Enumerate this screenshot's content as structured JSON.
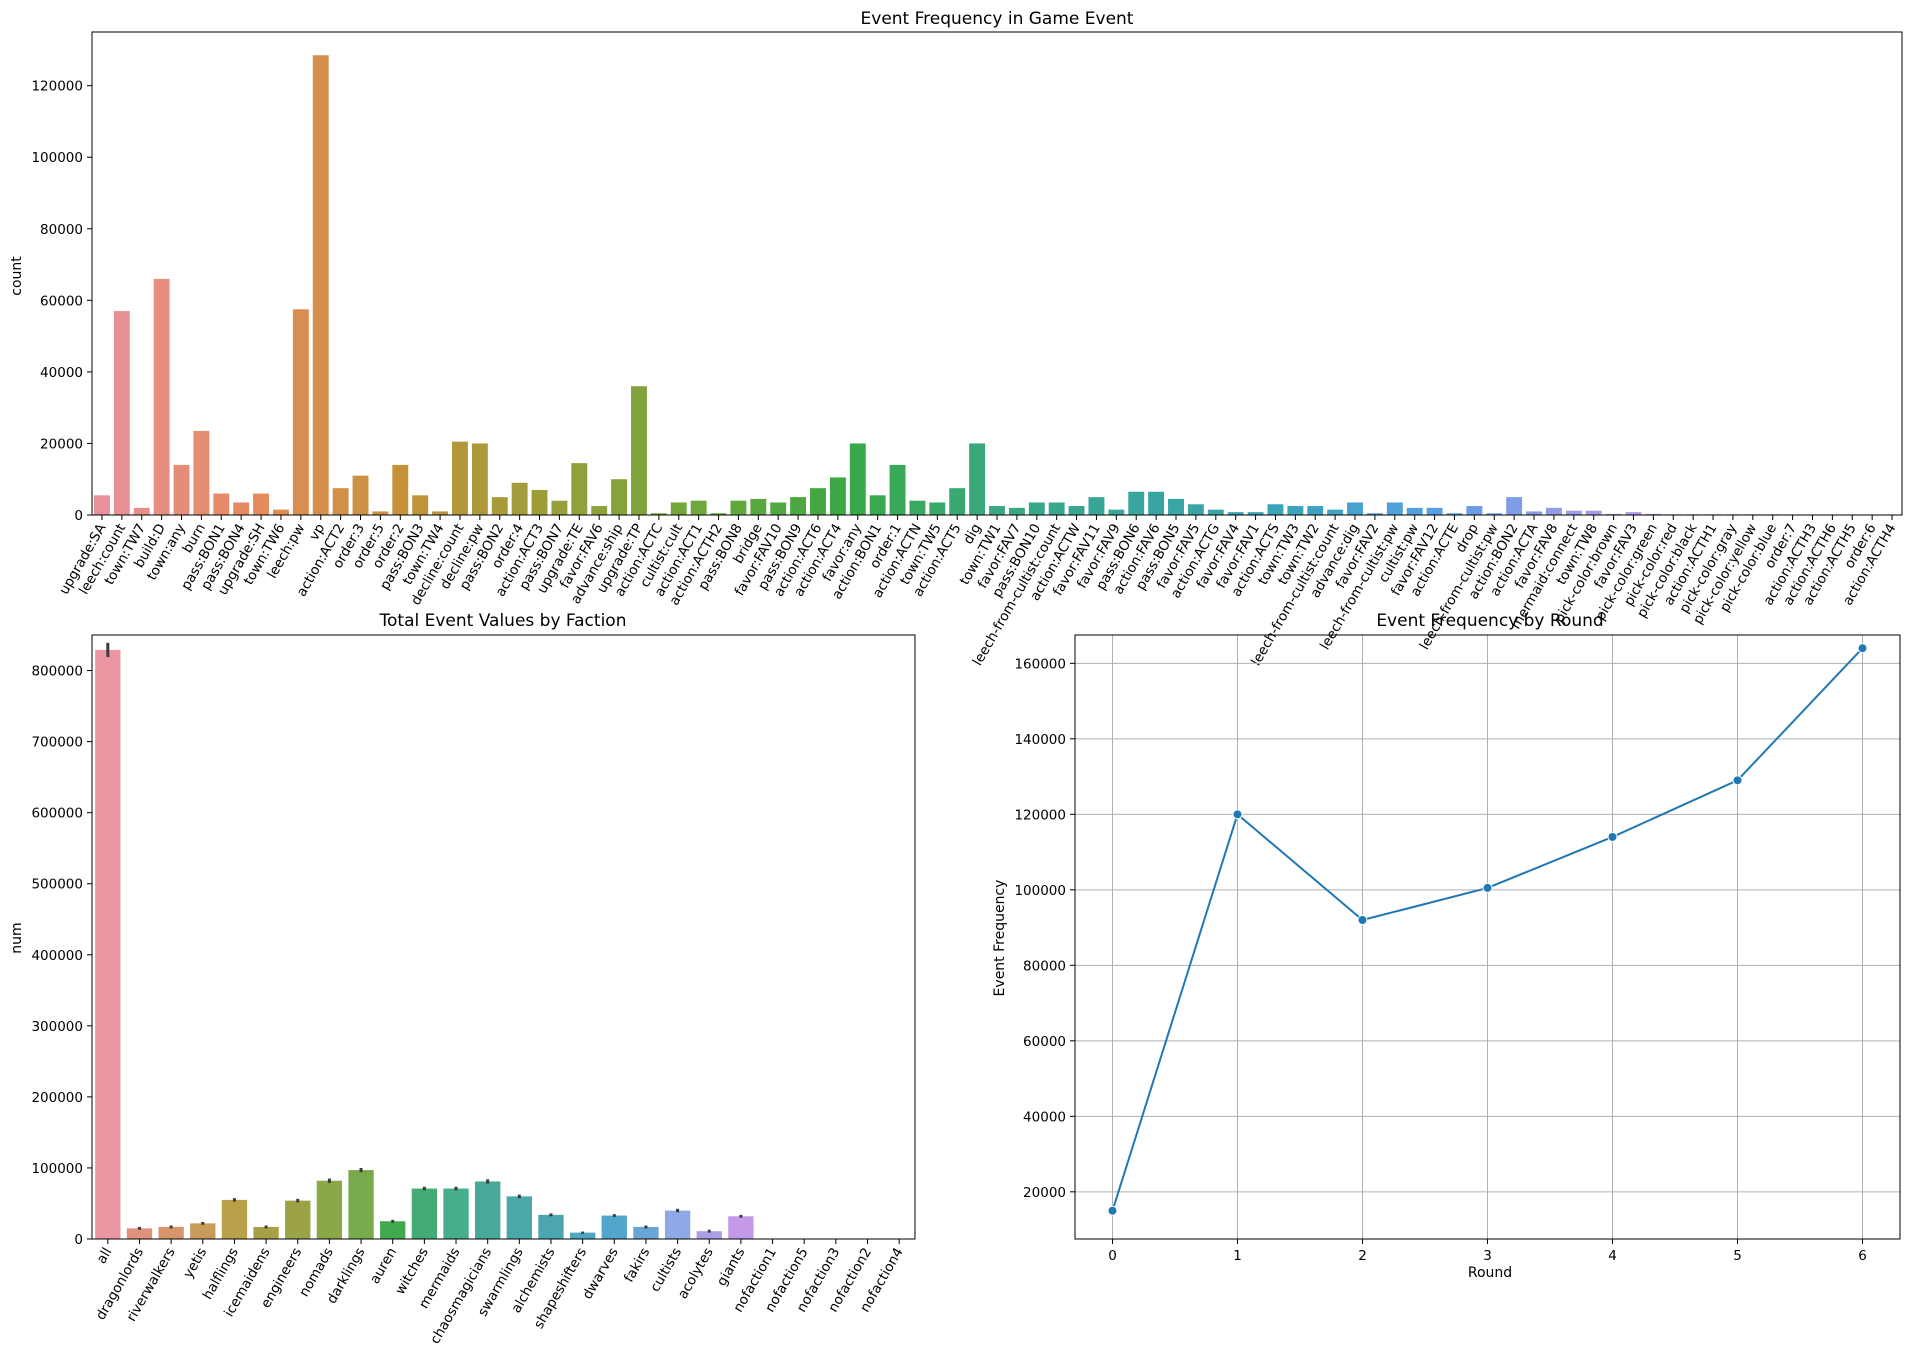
{
  "chart_data": [
    {
      "type": "bar",
      "title": "Event Frequency in Game Event",
      "xlabel": "",
      "ylabel": "count",
      "ylim": [
        0,
        135000
      ],
      "yticks": [
        0,
        20000,
        40000,
        60000,
        80000,
        100000,
        120000
      ],
      "categories": [
        "upgrade:SA",
        "leech:count",
        "town:TW7",
        "build:D",
        "town:any",
        "burn",
        "pass:BON1",
        "pass:BON4",
        "upgrade:SH",
        "town:TW6",
        "leech:pw",
        "vp",
        "action:ACT2",
        "order:3",
        "order:5",
        "order:2",
        "pass:BON3",
        "town:TW4",
        "decline:count",
        "decline:pw",
        "pass:BON2",
        "order:4",
        "action:ACT3",
        "pass:BON7",
        "upgrade:TE",
        "favor:FAV6",
        "advance:ship",
        "upgrade:TP",
        "action:ACTC",
        "cultist:cult",
        "action:ACT1",
        "action:ACTH2",
        "pass:BON8",
        "bridge",
        "favor:FAV10",
        "pass:BON9",
        "action:ACT6",
        "action:ACT4",
        "favor:any",
        "action:BON1",
        "order:1",
        "action:ACTN",
        "town:TW5",
        "action:ACT5",
        "dig",
        "town:TW1",
        "favor:FAV7",
        "pass:BON10",
        "leech-from-cultist:count",
        "action:ACTW",
        "favor:FAV11",
        "favor:FAV9",
        "pass:BON6",
        "action:FAV6",
        "pass:BON5",
        "favor:FAV5",
        "action:ACTG",
        "favor:FAV4",
        "favor:FAV1",
        "action:ACTS",
        "town:TW3",
        "town:TW2",
        "leech-from-cultist:count",
        "advance:dig",
        "favor:FAV2",
        "leech-from-cultist:pw",
        "cultist:pw",
        "favor:FAV12",
        "action:ACTE",
        "drop",
        "leech-from-cultist:pw",
        "action:BON2",
        "action:ACTA",
        "favor:FAV8",
        "mermaid:connect",
        "town:TW8",
        "pick-color:brown",
        "favor:FAV3",
        "pick-color:green",
        "pick-color:red",
        "pick-color:black",
        "action:ACTH1",
        "pick-color:gray",
        "pick-color:yellow",
        "pick-color:blue",
        "order:7",
        "action:ACTH3",
        "action:ACTH6",
        "action:ACTH5",
        "order:6",
        "action:ACTH4"
      ],
      "values": [
        5500,
        57000,
        2000,
        66000,
        14000,
        23500,
        6000,
        3500,
        6000,
        1500,
        57500,
        128500,
        7500,
        11000,
        1000,
        14000,
        5500,
        1000,
        20500,
        20000,
        5000,
        9000,
        7000,
        4000,
        14500,
        2500,
        10000,
        36000,
        500,
        3500,
        4000,
        500,
        4000,
        4500,
        3500,
        5000,
        7500,
        10500,
        20000,
        5500,
        14000,
        4000,
        3500,
        7500,
        20000,
        2500,
        2000,
        3500,
        3500,
        2500,
        5000,
        1500,
        6500,
        6500,
        4500,
        3000,
        1500,
        800,
        800,
        3000,
        2500,
        2500,
        1500,
        3500,
        500,
        3500,
        2000,
        2000,
        500,
        2500,
        500,
        5000,
        1000,
        2000,
        1200,
        1200,
        300,
        800,
        300,
        200,
        200,
        200,
        200,
        200,
        200,
        150,
        100,
        100,
        100,
        100,
        100
      ]
    },
    {
      "type": "bar",
      "title": "Total Event Values by Faction",
      "xlabel": "",
      "ylabel": "num",
      "ylim": [
        0,
        850000
      ],
      "yticks": [
        0,
        100000,
        200000,
        300000,
        400000,
        500000,
        600000,
        700000,
        800000
      ],
      "categories": [
        "all",
        "dragonlords",
        "riverwalkers",
        "yetis",
        "halflings",
        "icemaidens",
        "engineers",
        "nomads",
        "darklings",
        "auren",
        "witches",
        "mermaids",
        "chaosmagicians",
        "swarmlings",
        "alchemists",
        "shapeshifters",
        "dwarves",
        "fakirs",
        "cultists",
        "acolytes",
        "giants",
        "nofaction1",
        "nofaction5",
        "nofaction3",
        "nofaction2",
        "nofaction4"
      ],
      "values": [
        829000,
        15000,
        17000,
        22000,
        55000,
        17000,
        54000,
        82000,
        97000,
        25000,
        71000,
        71000,
        81000,
        60000,
        34000,
        9000,
        33000,
        17000,
        40000,
        11000,
        32000,
        0,
        0,
        0,
        0,
        0
      ],
      "errors": [
        10000,
        2000,
        2000,
        2000,
        2500,
        2000,
        2500,
        3000,
        3000,
        2000,
        2500,
        2500,
        3000,
        2500,
        2000,
        1500,
        2000,
        2000,
        2500,
        2000,
        2000,
        0,
        0,
        0,
        0,
        0
      ],
      "colors": [
        "#ea96a3",
        "#e1927c",
        "#d8956c",
        "#c99b5a",
        "#bba04a",
        "#a99f47",
        "#9ca347",
        "#8aa847",
        "#78ab4c",
        "#41a84e",
        "#43ab75",
        "#46ad8b",
        "#47aa99",
        "#49a9a8",
        "#4ba6b2",
        "#4fa6bf",
        "#52a5cb",
        "#6aa5d8",
        "#8da9e6",
        "#ac9fe7",
        "#c49ae8",
        "#d496df",
        "#df92d4",
        "#e590c7",
        "#e891b7",
        "#ea93ab"
      ]
    },
    {
      "type": "line",
      "title": "Event Frequency by Round",
      "xlabel": "Round",
      "ylabel": "Event Frequency",
      "xlim": [
        -0.3,
        6.3
      ],
      "ylim": [
        7500,
        167500
      ],
      "xticks": [
        0,
        1,
        2,
        3,
        4,
        5,
        6
      ],
      "yticks": [
        20000,
        40000,
        60000,
        80000,
        100000,
        120000,
        140000,
        160000
      ],
      "grid": true,
      "x": [
        0,
        1,
        2,
        3,
        4,
        5,
        6
      ],
      "y": [
        15000,
        120000,
        92000,
        100500,
        114000,
        129000,
        164000
      ],
      "color": "#1f77b4"
    }
  ]
}
